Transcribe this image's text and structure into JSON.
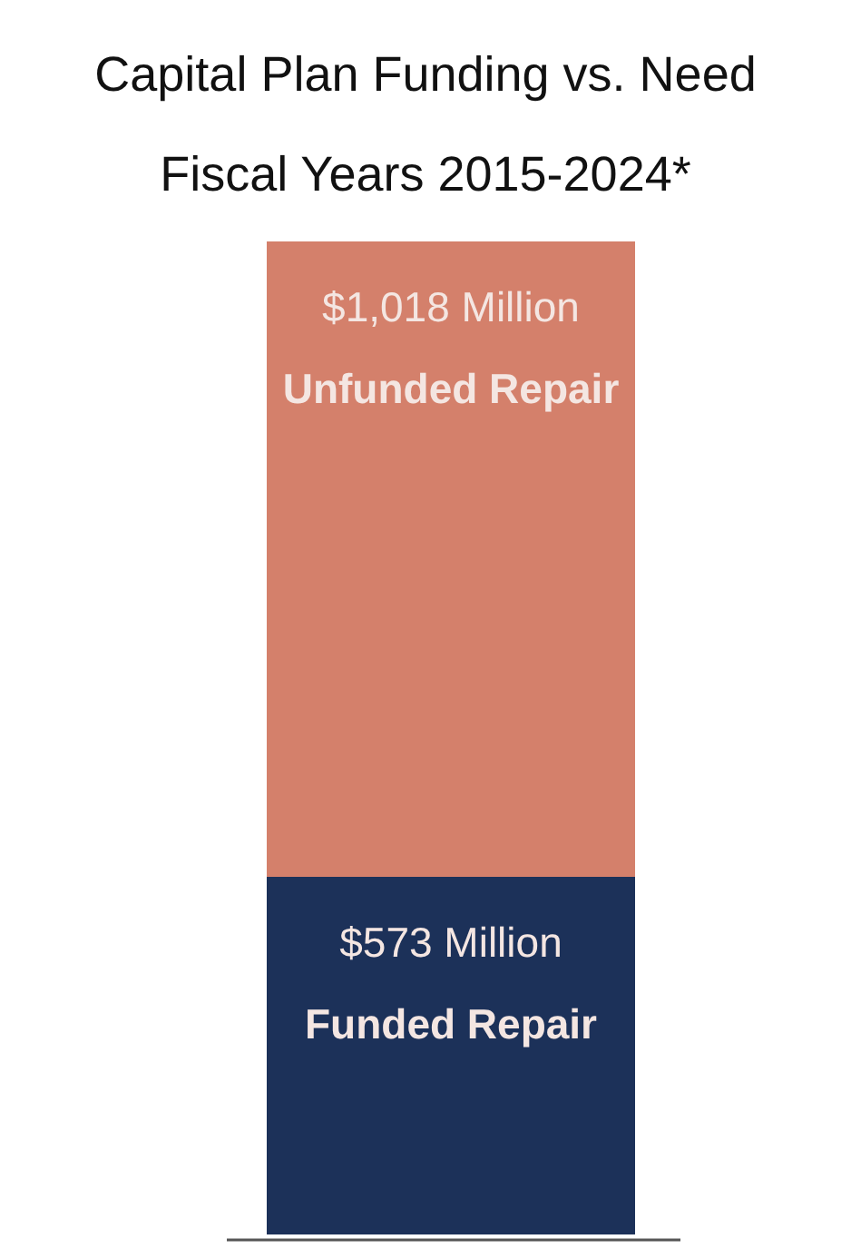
{
  "chart_data": {
    "type": "bar",
    "title": "Capital Plan Funding vs. Need",
    "subtitle": "Fiscal Years 2015-2024*",
    "stacked": true,
    "categories": [
      null
    ],
    "series": [
      {
        "name": "Funded Repair",
        "color": "#1c3159",
        "values": [
          573
        ],
        "value_labels": [
          "$573 Million"
        ]
      },
      {
        "name": "Unfunded Repair",
        "color": "#d4806b",
        "values": [
          1018
        ],
        "value_labels": [
          "$1,018 Million"
        ]
      }
    ]
  }
}
